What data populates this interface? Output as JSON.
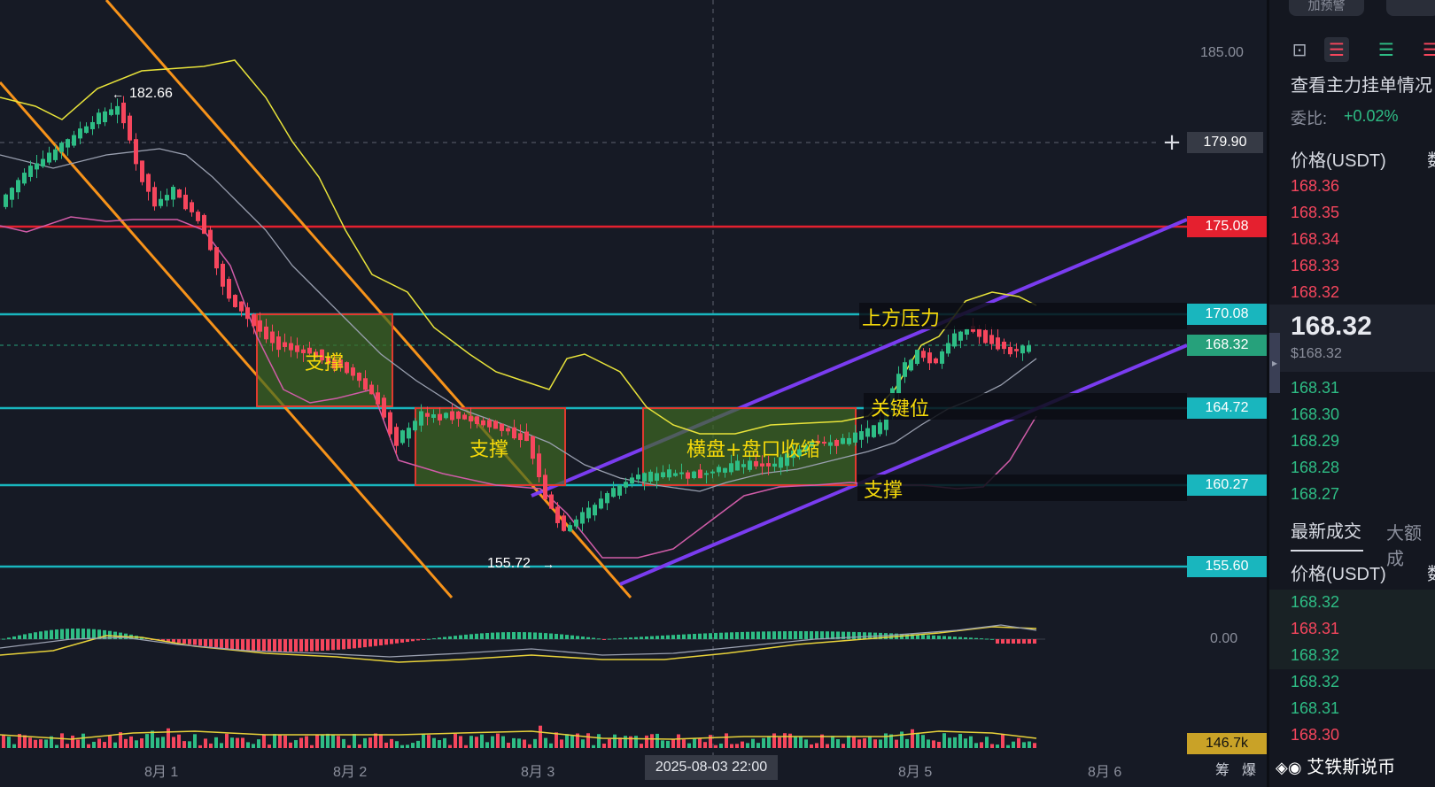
{
  "chart": {
    "price_axis_labels": [
      "185.00",
      "0.00"
    ],
    "time_axis_labels": [
      "8月 1",
      "8月 2",
      "8月 3",
      "8月 5",
      "8月 6"
    ],
    "crosshair_price": "179.90",
    "crosshair_date": "2025-08-03 22:00",
    "high_marker": "182.66",
    "low_marker": "155.72",
    "hline_tags": [
      {
        "label": "175.08",
        "color": "#e5202f"
      },
      {
        "label": "170.08",
        "color": "#19b6be"
      },
      {
        "label": "168.32",
        "color": "#26a17b"
      },
      {
        "label": "164.72",
        "color": "#19b6be"
      },
      {
        "label": "160.27",
        "color": "#19b6be"
      },
      {
        "label": "155.60",
        "color": "#19b6be"
      }
    ],
    "volume_tag": "146.7k",
    "annotations": {
      "support1": "支撑",
      "support2": "支撑",
      "consolidation": "横盘+盘口收缩",
      "resistance": "上方压力",
      "key_level": "关键位",
      "support3": "支撑"
    },
    "bottom_icons": {
      "chips": "筹",
      "blast": "爆"
    }
  },
  "side": {
    "btn_alert": "加预警",
    "order_book_title": "查看主力挂单情况",
    "ratio_label": "委比:",
    "ratio_value": "+0.02%",
    "price_header": "价格(USDT)",
    "qty_header_partial": "数",
    "asks": [
      "168.36",
      "168.35",
      "168.34",
      "168.33",
      "168.32"
    ],
    "last_price": "168.32",
    "last_price_usd": "$168.32",
    "bids": [
      "168.31",
      "168.30",
      "168.29",
      "168.28",
      "168.27"
    ],
    "tab_latest": "最新成交",
    "tab_large": "大额成",
    "trades_header": "价格(USDT)",
    "trades": [
      {
        "p": "168.32",
        "side": "buy"
      },
      {
        "p": "168.31",
        "side": "sell"
      },
      {
        "p": "168.32",
        "side": "buy"
      },
      {
        "p": "168.32",
        "side": "buy"
      },
      {
        "p": "168.31",
        "side": "buy"
      },
      {
        "p": "168.30",
        "side": "sell"
      }
    ],
    "watermark": "艾铁斯说币",
    "colors": {
      "up": "#2ebd85",
      "down": "#f6465d"
    }
  }
}
